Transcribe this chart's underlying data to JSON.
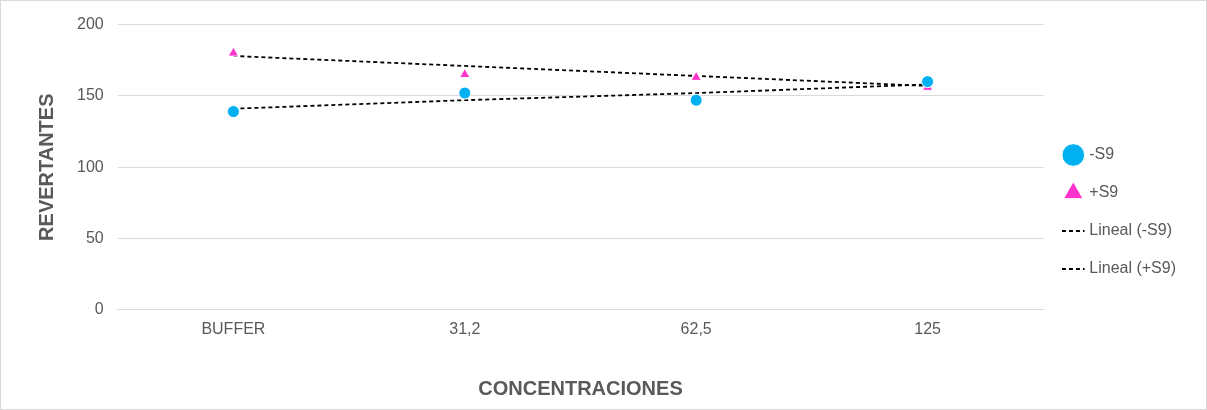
{
  "chart_data": {
    "type": "scatter",
    "xlabel": "CONCENTRACIONES",
    "ylabel": "REVERTANTES",
    "categories": [
      "BUFFER",
      "31,2",
      "62,5",
      "125"
    ],
    "series": [
      {
        "name": "-S9",
        "color": "#00b0f0",
        "marker": "circle",
        "values": [
          139,
          152,
          147,
          160
        ]
      },
      {
        "name": "+S9",
        "color": "#ff33cc",
        "marker": "triangle",
        "values": [
          180,
          165,
          163,
          156
        ]
      },
      {
        "name": "Lineal (-S9)",
        "type": "line",
        "color": "#000000",
        "marker": "none",
        "line_style": "dashed",
        "values": [
          141,
          147,
          152,
          158
        ]
      },
      {
        "name": "Lineal (+S9)",
        "type": "line",
        "color": "#000000",
        "marker": "none",
        "line_style": "dashed",
        "values": [
          178,
          171,
          164,
          157
        ]
      }
    ],
    "ylim": [
      0,
      200
    ],
    "yticks": [
      0,
      50,
      100,
      150,
      200
    ],
    "grid": "y",
    "legend": "right"
  }
}
